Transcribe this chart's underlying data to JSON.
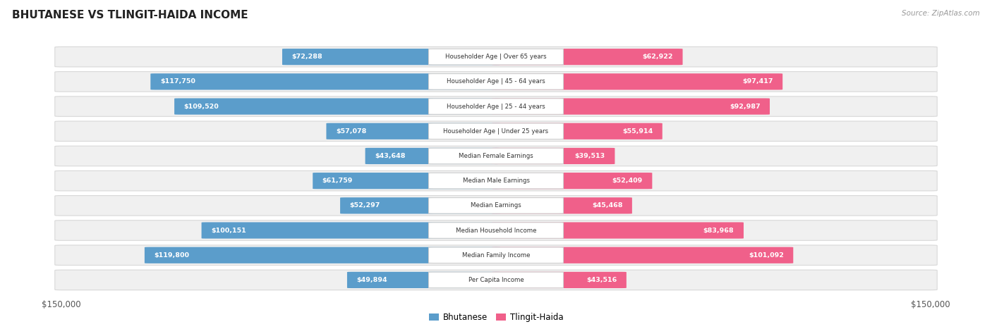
{
  "title": "BHUTANESE VS TLINGIT-HAIDA INCOME",
  "source": "Source: ZipAtlas.com",
  "categories": [
    "Per Capita Income",
    "Median Family Income",
    "Median Household Income",
    "Median Earnings",
    "Median Male Earnings",
    "Median Female Earnings",
    "Householder Age | Under 25 years",
    "Householder Age | 25 - 44 years",
    "Householder Age | 45 - 64 years",
    "Householder Age | Over 65 years"
  ],
  "bhutanese_values": [
    49894,
    119800,
    100151,
    52297,
    61759,
    43648,
    57078,
    109520,
    117750,
    72288
  ],
  "tlingit_values": [
    43516,
    101092,
    83968,
    45468,
    52409,
    39513,
    55914,
    92987,
    97417,
    62922
  ],
  "bhutanese_labels": [
    "$49,894",
    "$119,800",
    "$100,151",
    "$52,297",
    "$61,759",
    "$43,648",
    "$57,078",
    "$109,520",
    "$117,750",
    "$72,288"
  ],
  "tlingit_labels": [
    "$43,516",
    "$101,092",
    "$83,968",
    "$45,468",
    "$52,409",
    "$39,513",
    "$55,914",
    "$92,987",
    "$97,417",
    "$62,922"
  ],
  "bhutanese_color_light": "#A8C8E8",
  "bhutanese_color_solid": "#5B9DCB",
  "tlingit_color_light": "#F4A0B8",
  "tlingit_color_solid": "#F0608A",
  "max_value": 150000,
  "background_color": "#ffffff",
  "row_bg_color": "#f0f0f0",
  "row_border_color": "#d8d8d8",
  "label_box_bg": "#ffffff",
  "label_box_border": "#d0d0d0",
  "legend_bhutanese": "Bhutanese",
  "legend_tlingit": "Tlingit-Haida",
  "inside_label_threshold": 0.22
}
